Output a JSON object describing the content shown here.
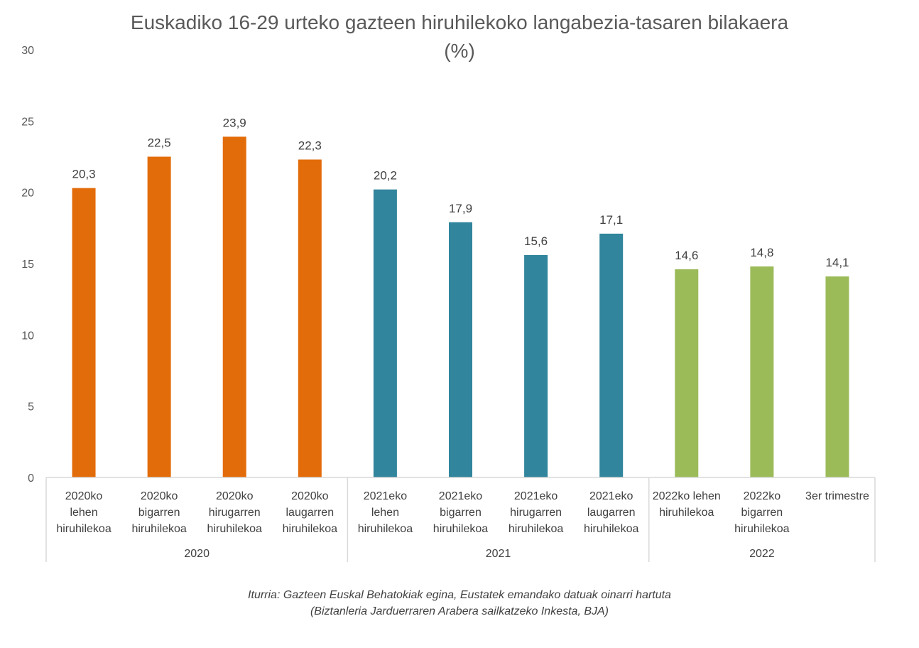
{
  "chart_data": {
    "type": "bar",
    "title": [
      "Euskadiko 16-29 urteko gazteen hiruhilekoko langabezia-tasaren bilakaera",
      "(%)"
    ],
    "ylim": [
      0,
      30
    ],
    "yticks": [
      "0",
      "5",
      "10",
      "15",
      "20",
      "25",
      "30"
    ],
    "grid": false,
    "categories": [
      [
        "2020ko",
        "lehen",
        "hiruhilekoa"
      ],
      [
        "2020ko",
        "bigarren",
        "hiruhilekoa"
      ],
      [
        "2020ko",
        "hirugarren",
        "hiruhilekoa"
      ],
      [
        "2020ko",
        "laugarren",
        "hiruhilekoa"
      ],
      [
        "2021eko",
        "lehen",
        "hiruhilekoa"
      ],
      [
        "2021eko",
        "bigarren",
        "hiruhilekoa"
      ],
      [
        "2021eko",
        "hirugarren",
        "hiruhilekoa"
      ],
      [
        "2021eko",
        "laugarren",
        "hiruhilekoa"
      ],
      [
        "2022ko lehen",
        "hiruhilekoa"
      ],
      [
        "2022ko",
        "bigarren",
        "hiruhilekoa"
      ],
      [
        "3er trimestre"
      ]
    ],
    "values": [
      20.3,
      22.5,
      23.9,
      22.3,
      20.2,
      17.9,
      15.6,
      17.1,
      14.6,
      14.8,
      14.1
    ],
    "value_labels": [
      "20,3",
      "22,5",
      "23,9",
      "22,3",
      "20,2",
      "17,9",
      "15,6",
      "17,1",
      "14,6",
      "14,8",
      "14,1"
    ],
    "groups": [
      {
        "label": "2020",
        "count": 4,
        "color": "#E36C0A"
      },
      {
        "label": "2021",
        "count": 4,
        "color": "#31859C"
      },
      {
        "label": "2022",
        "count": 3,
        "color": "#9BBB59"
      }
    ]
  },
  "source": [
    "Iturria: Gazteen Euskal Behatokiak egina, Eustatek emandako datuak oinarri hartuta",
    "(Biztanleria Jarduerraren Arabera sailkatzeko Inkesta, BJA)"
  ]
}
